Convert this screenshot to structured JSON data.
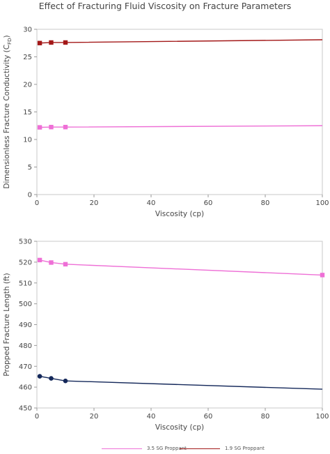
{
  "title": "Effect of Fracturing Fluid Viscosity on Fracture Parameters",
  "colors": {
    "proppant35": "#ee6fd6",
    "proppant19": "#a31818",
    "proppant19_lower": "#14285a"
  },
  "legend": [
    {
      "label": "3.5 SG Proppant",
      "color": "#ee6fd6"
    },
    {
      "label": "1.9 SG Proppant",
      "color": "#a31818"
    }
  ],
  "chart_data": [
    {
      "type": "line",
      "xlabel": "Viscosity (cp)",
      "ylabel": "Dimensionless Fracture Conductivity (C",
      "ylabel_sub": "FD",
      "ylabel_tail": ")",
      "xlim": [
        0,
        100
      ],
      "ylim": [
        0,
        30
      ],
      "xticks": [
        0,
        20,
        40,
        60,
        80,
        100
      ],
      "yticks": [
        0,
        5,
        10,
        15,
        20,
        25,
        30
      ],
      "grid": false,
      "series": [
        {
          "name": "3.5 SG Proppant",
          "color": "#ee6fd6",
          "marker": "square",
          "x": [
            1,
            5,
            10,
            100
          ],
          "y": [
            12.2,
            12.25,
            12.25,
            12.5
          ],
          "marker_x": [
            1,
            5,
            10
          ]
        },
        {
          "name": "1.9 SG Proppant",
          "color": "#a31818",
          "marker": "square",
          "x": [
            1,
            5,
            10,
            100
          ],
          "y": [
            27.5,
            27.6,
            27.6,
            28.1
          ],
          "marker_x": [
            1,
            5,
            10
          ]
        }
      ]
    },
    {
      "type": "line",
      "xlabel": "Viscosity (cp)",
      "ylabel": "Propped Fracture Length (ft)",
      "xlim": [
        0,
        100
      ],
      "ylim": [
        450,
        530
      ],
      "xticks": [
        0,
        20,
        40,
        60,
        80,
        100
      ],
      "yticks": [
        450,
        460,
        470,
        480,
        490,
        500,
        510,
        520,
        530
      ],
      "grid": false,
      "series": [
        {
          "name": "3.5 SG Proppant",
          "color": "#ee6fd6",
          "marker": "square",
          "x": [
            1,
            5,
            10,
            100
          ],
          "y": [
            521,
            519.8,
            519,
            513.8
          ],
          "marker_x": [
            1,
            5,
            10,
            100
          ]
        },
        {
          "name": "1.9 SG Proppant",
          "color": "#14285a",
          "marker": "circle",
          "x": [
            1,
            5,
            10,
            100
          ],
          "y": [
            465.2,
            464.2,
            463,
            459
          ],
          "marker_x": [
            1,
            5,
            10
          ]
        }
      ]
    }
  ]
}
